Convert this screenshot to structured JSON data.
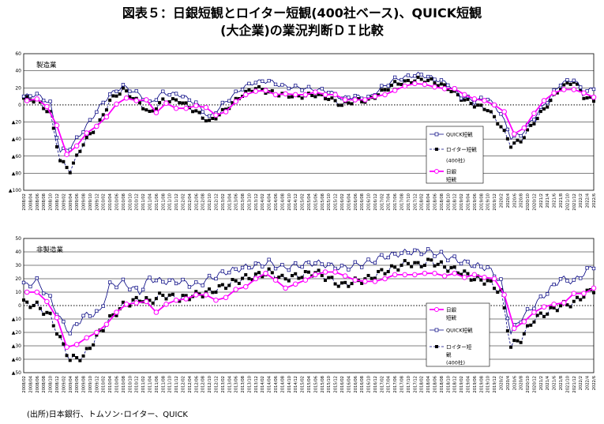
{
  "title": {
    "line1": "図表５：日銀短観とロイター短観(400社ベース)、QUICK短観",
    "line2": "(大企業)の業況判断ＤＩ比較"
  },
  "source": "(出所)日本銀行、トムソン･ロイター、QUICK",
  "colors": {
    "tankan": "#ff00ff",
    "quick": "#000080",
    "reuters": "#000000"
  },
  "x_tick_labels": [
    "2008/02",
    "2008/04",
    "2008/06",
    "2008/08",
    "2008/10",
    "2008/12",
    "2009/02",
    "2009/04",
    "2009/06",
    "2009/08",
    "2009/10",
    "2009/12",
    "2010/02",
    "2010/04",
    "2010/06",
    "2010/08",
    "2010/10",
    "2010/12",
    "2011/02",
    "2011/04",
    "2011/06",
    "2011/08",
    "2011/10",
    "2011/12",
    "2012/02",
    "2012/04",
    "2012/06",
    "2012/08",
    "2012/10",
    "2012/12",
    "2013/02",
    "2013/04",
    "2013/06",
    "2013/08",
    "2013/10",
    "2013/12",
    "2014/02",
    "2014/04",
    "2014/06",
    "2014/08",
    "2014/10",
    "2014/12",
    "2015/02",
    "2015/04",
    "2015/06",
    "2015/08",
    "2015/10",
    "2015/12",
    "2016/02",
    "2016/04",
    "2016/06",
    "2016/08",
    "2016/10",
    "2016/12",
    "2017/02",
    "2017/04",
    "2017/06",
    "2017/08",
    "2017/10",
    "2017/12",
    "2018/02",
    "2018/04",
    "2018/06",
    "2018/08",
    "2018/10",
    "2018/12",
    "2019/02",
    "2019/04",
    "2019/06",
    "2019/08",
    "2019/10",
    "2019/12",
    "2020/2",
    "2020/4",
    "2020/6",
    "2020/8",
    "2020/10",
    "2020/12",
    "2021/2",
    "2021/4",
    "2021/6",
    "2021/8",
    "2021/10",
    "2021/12",
    "2022/2",
    "2022/4",
    "2022/6"
  ],
  "chart_data": [
    {
      "type": "line",
      "panel_label": "製造業",
      "ylim": [
        -100,
        60
      ],
      "yticks": [
        60,
        40,
        20,
        0,
        -20,
        -40,
        -60,
        -80,
        -100
      ],
      "ytick_labels": [
        "60",
        "40",
        "20",
        "0",
        "▲20",
        "▲40",
        "▲60",
        "▲80",
        "▲100"
      ],
      "zero_line": "dotted",
      "grid": "horizontal",
      "legend_position": "right",
      "series": [
        {
          "name": "QUICK短観",
          "key": "quick",
          "x": [
            "2008/02",
            "2008/06",
            "2008/10",
            "2009/01",
            "2009/04",
            "2009/08",
            "2010/01",
            "2010/04",
            "2010/08",
            "2011/01",
            "2011/04",
            "2011/08",
            "2012/01",
            "2012/06",
            "2012/10",
            "2013/03",
            "2013/08",
            "2013/12",
            "2014/04",
            "2014/08",
            "2015/01",
            "2015/06",
            "2015/10",
            "2016/02",
            "2016/06",
            "2016/10",
            "2017/02",
            "2017/06",
            "2017/10",
            "2018/01",
            "2018/05",
            "2018/10",
            "2019/02",
            "2019/06",
            "2019/10",
            "2020/02",
            "2020/05",
            "2020/08",
            "2020/12",
            "2021/04",
            "2021/08",
            "2021/12",
            "2022/03",
            "2022/06"
          ],
          "values": [
            10,
            12,
            2,
            -55,
            -50,
            -30,
            -2,
            12,
            22,
            12,
            2,
            14,
            12,
            2,
            -15,
            4,
            20,
            27,
            28,
            22,
            20,
            18,
            16,
            8,
            10,
            8,
            20,
            30,
            33,
            36,
            32,
            25,
            10,
            5,
            8,
            -10,
            -38,
            -35,
            -15,
            5,
            25,
            30,
            15,
            19
          ]
        },
        {
          "name": "ロイター短観",
          "key": "reuters",
          "note": "(400社)",
          "x": [
            "2008/02",
            "2008/06",
            "2008/10",
            "2009/01",
            "2009/04",
            "2009/08",
            "2010/01",
            "2010/04",
            "2010/08",
            "2011/01",
            "2011/04",
            "2011/08",
            "2012/01",
            "2012/06",
            "2012/10",
            "2013/03",
            "2013/08",
            "2013/12",
            "2014/04",
            "2014/08",
            "2015/01",
            "2015/06",
            "2015/10",
            "2016/02",
            "2016/06",
            "2016/10",
            "2017/02",
            "2017/06",
            "2017/10",
            "2018/01",
            "2018/05",
            "2018/10",
            "2019/02",
            "2019/06",
            "2019/10",
            "2020/02",
            "2020/05",
            "2020/08",
            "2020/12",
            "2021/04",
            "2021/08",
            "2021/12",
            "2022/03",
            "2022/06"
          ],
          "values": [
            8,
            5,
            -10,
            -65,
            -77,
            -45,
            -20,
            5,
            18,
            2,
            -10,
            5,
            5,
            -8,
            -20,
            -5,
            12,
            20,
            15,
            12,
            10,
            12,
            8,
            0,
            5,
            5,
            15,
            25,
            27,
            30,
            28,
            20,
            8,
            0,
            -5,
            -25,
            -47,
            -42,
            -20,
            0,
            20,
            28,
            10,
            5
          ]
        },
        {
          "name": "日銀短観",
          "key": "tankan",
          "x": [
            "2008/03",
            "2008/06",
            "2008/09",
            "2008/12",
            "2009/03",
            "2009/06",
            "2009/09",
            "2009/12",
            "2010/03",
            "2010/06",
            "2010/09",
            "2010/12",
            "2011/03",
            "2011/06",
            "2011/09",
            "2011/12",
            "2012/03",
            "2012/06",
            "2012/09",
            "2012/12",
            "2013/03",
            "2013/06",
            "2013/09",
            "2013/12",
            "2014/03",
            "2014/06",
            "2014/09",
            "2014/12",
            "2015/03",
            "2015/06",
            "2015/09",
            "2015/12",
            "2016/03",
            "2016/06",
            "2016/09",
            "2016/12",
            "2017/03",
            "2017/06",
            "2017/09",
            "2017/12",
            "2018/03",
            "2018/06",
            "2018/09",
            "2018/12",
            "2019/03",
            "2019/06",
            "2019/09",
            "2019/12",
            "2020/03",
            "2020/06",
            "2020/09",
            "2020/12",
            "2021/03",
            "2021/06",
            "2021/09",
            "2021/12",
            "2022/03",
            "2022/06"
          ],
          "values": [
            5,
            7,
            -2,
            -24,
            -58,
            -48,
            -33,
            -25,
            -14,
            1,
            8,
            5,
            6,
            -9,
            2,
            -4,
            -4,
            -1,
            -3,
            -12,
            -8,
            4,
            12,
            16,
            17,
            12,
            13,
            12,
            12,
            15,
            12,
            12,
            6,
            6,
            6,
            10,
            12,
            17,
            22,
            25,
            24,
            21,
            19,
            19,
            12,
            7,
            5,
            0,
            -8,
            -34,
            -27,
            -10,
            5,
            14,
            18,
            18,
            14,
            9
          ]
        }
      ],
      "legend": [
        "QUICK短観",
        "ロイター短観",
        "(400社)",
        "日銀",
        "短観"
      ]
    },
    {
      "type": "line",
      "panel_label": "非製造業",
      "ylim": [
        -50,
        50
      ],
      "yticks": [
        50,
        40,
        30,
        20,
        10,
        0,
        -10,
        -20,
        -30,
        -40,
        -50
      ],
      "ytick_labels": [
        "50",
        "40",
        "30",
        "20",
        "10",
        "0",
        "▲10",
        "▲20",
        "▲30",
        "▲40",
        "▲50"
      ],
      "zero_line": "dotted",
      "grid": "horizontal",
      "legend_position": "right",
      "series": [
        {
          "name": "日銀短観",
          "key": "tankan",
          "x": [
            "2008/03",
            "2008/06",
            "2008/09",
            "2008/12",
            "2009/03",
            "2009/06",
            "2009/09",
            "2009/12",
            "2010/03",
            "2010/06",
            "2010/09",
            "2010/12",
            "2011/03",
            "2011/06",
            "2011/09",
            "2011/12",
            "2012/03",
            "2012/06",
            "2012/09",
            "2012/12",
            "2013/03",
            "2013/06",
            "2013/09",
            "2013/12",
            "2014/03",
            "2014/06",
            "2014/09",
            "2014/12",
            "2015/03",
            "2015/06",
            "2015/09",
            "2015/12",
            "2016/03",
            "2016/06",
            "2016/09",
            "2016/12",
            "2017/03",
            "2017/06",
            "2017/09",
            "2017/12",
            "2018/03",
            "2018/06",
            "2018/09",
            "2018/12",
            "2019/03",
            "2019/06",
            "2019/09",
            "2019/12",
            "2020/03",
            "2020/06",
            "2020/09",
            "2020/12",
            "2021/03",
            "2021/06",
            "2021/09",
            "2021/12",
            "2022/03",
            "2022/06"
          ],
          "values": [
            10,
            10,
            3,
            -9,
            -31,
            -29,
            -24,
            -20,
            -14,
            -5,
            1,
            2,
            3,
            -5,
            1,
            4,
            5,
            8,
            8,
            4,
            6,
            12,
            14,
            20,
            24,
            19,
            13,
            16,
            19,
            23,
            25,
            25,
            22,
            19,
            18,
            18,
            20,
            23,
            23,
            23,
            24,
            24,
            22,
            24,
            21,
            23,
            21,
            20,
            8,
            -17,
            -12,
            -5,
            -1,
            1,
            2,
            9,
            9,
            13
          ]
        },
        {
          "name": "QUICK短観",
          "key": "quick",
          "x": [
            "2008/02",
            "2008/06",
            "2008/10",
            "2009/01",
            "2009/04",
            "2009/08",
            "2010/01",
            "2010/04",
            "2010/08",
            "2011/01",
            "2011/04",
            "2011/08",
            "2012/01",
            "2012/06",
            "2012/10",
            "2013/03",
            "2013/08",
            "2013/12",
            "2014/04",
            "2014/08",
            "2015/01",
            "2015/06",
            "2015/10",
            "2016/02",
            "2016/06",
            "2016/10",
            "2017/02",
            "2017/06",
            "2017/10",
            "2018/01",
            "2018/05",
            "2018/10",
            "2019/02",
            "2019/06",
            "2019/10",
            "2020/02",
            "2020/05",
            "2020/08",
            "2020/12",
            "2021/04",
            "2021/08",
            "2021/12",
            "2022/03",
            "2022/06"
          ],
          "values": [
            15,
            18,
            5,
            -10,
            -20,
            -8,
            -5,
            15,
            17,
            10,
            20,
            18,
            18,
            15,
            20,
            25,
            28,
            30,
            32,
            28,
            30,
            32,
            30,
            28,
            30,
            32,
            36,
            38,
            40,
            40,
            40,
            36,
            33,
            30,
            28,
            18,
            -20,
            -10,
            0,
            10,
            20,
            18,
            24,
            30
          ]
        },
        {
          "name": "ロイター短観",
          "key": "reuters",
          "note": "(400社)",
          "x": [
            "2008/02",
            "2008/06",
            "2008/10",
            "2009/01",
            "2009/04",
            "2009/08",
            "2010/01",
            "2010/04",
            "2010/08",
            "2011/01",
            "2011/04",
            "2011/08",
            "2012/01",
            "2012/06",
            "2012/10",
            "2013/03",
            "2013/08",
            "2013/12",
            "2014/04",
            "2014/08",
            "2015/01",
            "2015/06",
            "2015/10",
            "2016/02",
            "2016/06",
            "2016/10",
            "2017/02",
            "2017/06",
            "2017/10",
            "2018/01",
            "2018/05",
            "2018/10",
            "2019/02",
            "2019/06",
            "2019/10",
            "2020/02",
            "2020/05",
            "2020/08",
            "2020/12",
            "2021/04",
            "2021/08",
            "2021/12",
            "2022/03",
            "2022/06"
          ],
          "values": [
            2,
            0,
            -8,
            -25,
            -40,
            -38,
            -20,
            -10,
            0,
            5,
            3,
            8,
            5,
            8,
            10,
            15,
            20,
            22,
            25,
            20,
            22,
            25,
            20,
            15,
            18,
            20,
            25,
            28,
            32,
            30,
            33,
            28,
            25,
            20,
            18,
            10,
            -30,
            -25,
            -10,
            -5,
            0,
            2,
            8,
            12
          ]
        }
      ],
      "legend": [
        "日銀",
        "短観",
        "QUICK短観",
        "ロイター短",
        "観",
        "(400社)"
      ]
    }
  ]
}
